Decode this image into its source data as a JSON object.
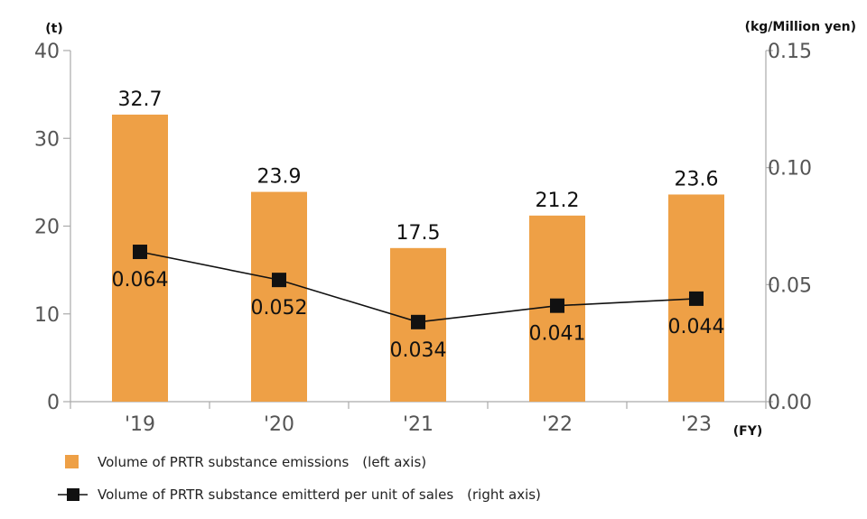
{
  "chart_data": {
    "type": "bar",
    "categories": [
      "'19",
      "'20",
      "'21",
      "'22",
      "'23"
    ],
    "series": [
      {
        "name": "Volume of PRTR substance emissions　(left axis)",
        "type": "bar",
        "axis": "left",
        "values": [
          32.7,
          23.9,
          17.5,
          21.2,
          23.6
        ],
        "labels": [
          "32.7",
          "23.9",
          "17.5",
          "21.2",
          "23.6"
        ],
        "color": "#eea046"
      },
      {
        "name": "Volume of PRTR substance emitterd per unit of sales　(right axis)",
        "type": "line",
        "axis": "right",
        "values": [
          0.064,
          0.052,
          0.034,
          0.041,
          0.044
        ],
        "labels": [
          "0.064",
          "0.052",
          "0.034",
          "0.041",
          "0.044"
        ],
        "color": "#111111"
      }
    ],
    "left_axis": {
      "unit": "(t)",
      "ylim": [
        0,
        40
      ],
      "ticks": [
        "0",
        "10",
        "20",
        "30",
        "40"
      ]
    },
    "right_axis": {
      "unit": "(kg/Million yen)",
      "ylim": [
        0,
        0.15
      ],
      "ticks": [
        "0.00",
        "0.05",
        "0.10",
        "0.15"
      ]
    },
    "x_axis": {
      "unit": "(FY)"
    },
    "grid": false,
    "legend_position": "bottom-left"
  }
}
